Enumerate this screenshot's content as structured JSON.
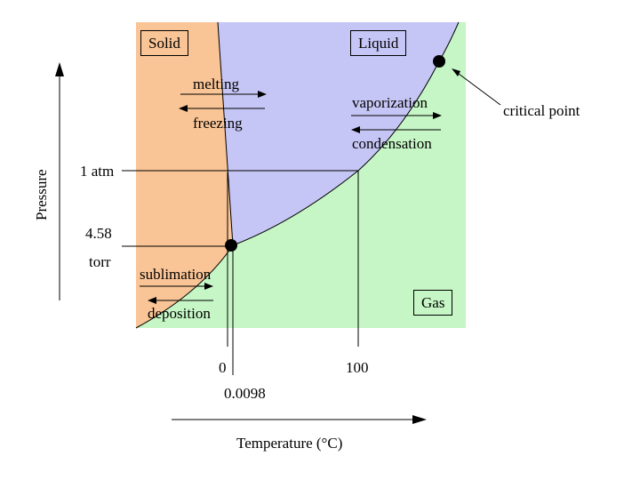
{
  "regions": {
    "solid": "Solid",
    "liquid": "Liquid",
    "gas": "Gas"
  },
  "transitions": {
    "melting": "melting",
    "freezing": "freezing",
    "vaporization": "vaporization",
    "condensation": "condensation",
    "sublimation": "sublimation",
    "deposition": "deposition"
  },
  "annotations": {
    "critical_point": "critical point"
  },
  "axes": {
    "xlabel": "Temperature (°C)",
    "ylabel": "Pressure",
    "x_ticks": [
      "0",
      "0.0098",
      "100"
    ],
    "y_ticks": [
      "1 atm",
      "4.58",
      "torr"
    ]
  },
  "colors": {
    "solid": "#f9c496",
    "liquid": "#c6c6f6",
    "gas": "#c6f6c6",
    "border": "#000000"
  }
}
